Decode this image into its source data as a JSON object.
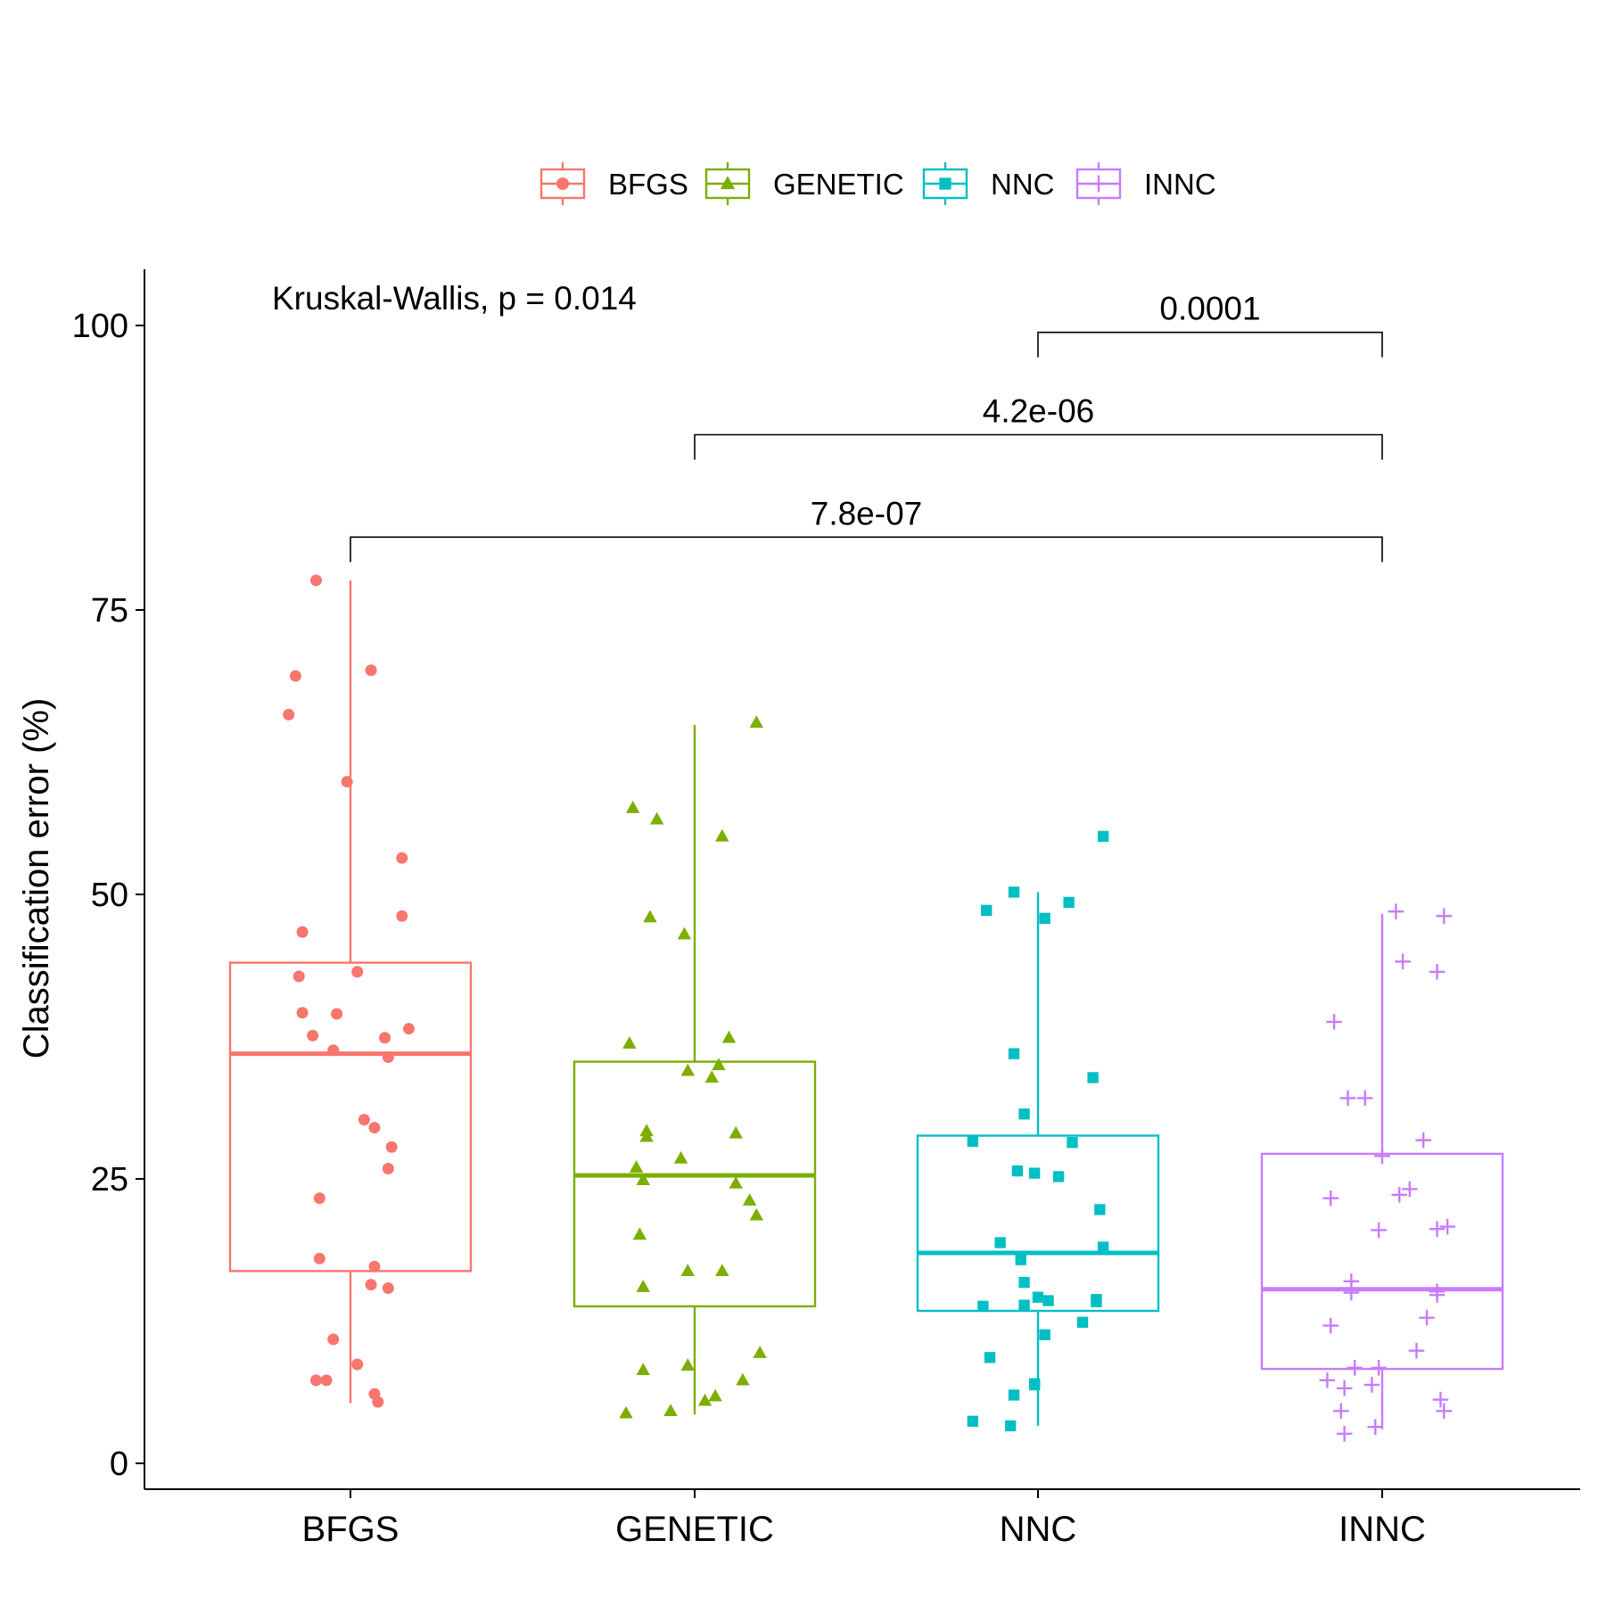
{
  "chart_data": {
    "type": "box",
    "ylabel": "Classification error (%)",
    "xlabel": "",
    "ylim": [
      -2.3,
      104.8
    ],
    "yticks": [
      0,
      25,
      50,
      75,
      100
    ],
    "categories": [
      "BFGS",
      "GENETIC",
      "NNC",
      "INNC"
    ],
    "legend": {
      "position": "top",
      "entries": [
        {
          "label": "BFGS",
          "color": "#F8766D",
          "shape": "circle"
        },
        {
          "label": "GENETIC",
          "color": "#7CAE00",
          "shape": "triangle"
        },
        {
          "label": "NNC",
          "color": "#00BFC4",
          "shape": "square"
        },
        {
          "label": "INNC",
          "color": "#C77CFF",
          "shape": "plus"
        }
      ]
    },
    "series": [
      {
        "name": "BFGS",
        "color": "#F8766D",
        "shape": "circle",
        "box": {
          "whisker_low": 5.3,
          "q1": 16.9,
          "median": 36.0,
          "q3": 44.0,
          "whisker_high": 77.6
        },
        "points": [
          [
            -0.1,
            77.6
          ],
          [
            -0.16,
            69.2
          ],
          [
            0.06,
            69.7
          ],
          [
            -0.18,
            65.8
          ],
          [
            -0.01,
            59.9
          ],
          [
            0.15,
            53.2
          ],
          [
            0.15,
            48.1
          ],
          [
            -0.14,
            46.7
          ],
          [
            0.02,
            43.2
          ],
          [
            -0.15,
            42.8
          ],
          [
            -0.14,
            39.6
          ],
          [
            -0.04,
            39.5
          ],
          [
            0.17,
            38.2
          ],
          [
            -0.11,
            37.6
          ],
          [
            0.1,
            37.4
          ],
          [
            -0.05,
            36.3
          ],
          [
            0.11,
            35.7
          ],
          [
            0.04,
            30.2
          ],
          [
            0.07,
            29.5
          ],
          [
            0.12,
            27.8
          ],
          [
            0.11,
            25.9
          ],
          [
            -0.09,
            23.3
          ],
          [
            -0.09,
            18.0
          ],
          [
            0.07,
            17.3
          ],
          [
            0.06,
            15.7
          ],
          [
            0.11,
            15.4
          ],
          [
            -0.05,
            10.9
          ],
          [
            0.02,
            8.7
          ],
          [
            -0.1,
            7.3
          ],
          [
            -0.07,
            7.3
          ],
          [
            0.07,
            6.1
          ],
          [
            0.08,
            5.4
          ]
        ]
      },
      {
        "name": "GENETIC",
        "color": "#7CAE00",
        "shape": "triangle",
        "box": {
          "whisker_low": 4.3,
          "q1": 13.8,
          "median": 25.3,
          "q3": 35.3,
          "whisker_high": 64.9
        },
        "points": [
          [
            0.18,
            65.1
          ],
          [
            -0.18,
            57.6
          ],
          [
            -0.11,
            56.6
          ],
          [
            0.08,
            55.1
          ],
          [
            -0.13,
            48.0
          ],
          [
            -0.03,
            46.5
          ],
          [
            -0.19,
            36.9
          ],
          [
            0.1,
            37.4
          ],
          [
            0.07,
            35.0
          ],
          [
            -0.02,
            34.5
          ],
          [
            0.05,
            33.9
          ],
          [
            -0.14,
            29.2
          ],
          [
            -0.14,
            28.7
          ],
          [
            0.12,
            29.0
          ],
          [
            -0.04,
            26.8
          ],
          [
            -0.17,
            26.0
          ],
          [
            -0.15,
            24.9
          ],
          [
            0.12,
            24.6
          ],
          [
            0.16,
            23.1
          ],
          [
            0.18,
            21.8
          ],
          [
            -0.16,
            20.1
          ],
          [
            -0.15,
            15.5
          ],
          [
            -0.02,
            16.9
          ],
          [
            0.08,
            16.9
          ],
          [
            0.19,
            9.7
          ],
          [
            -0.15,
            8.2
          ],
          [
            -0.02,
            8.6
          ],
          [
            0.06,
            5.9
          ],
          [
            0.03,
            5.5
          ],
          [
            0.14,
            7.3
          ],
          [
            -0.2,
            4.4
          ],
          [
            -0.07,
            4.6
          ]
        ]
      },
      {
        "name": "NNC",
        "color": "#00BFC4",
        "shape": "square",
        "box": {
          "whisker_low": 3.3,
          "q1": 13.4,
          "median": 18.5,
          "q3": 28.8,
          "whisker_high": 50.2
        },
        "points": [
          [
            0.19,
            55.1
          ],
          [
            -0.07,
            50.2
          ],
          [
            -0.15,
            48.6
          ],
          [
            0.09,
            49.3
          ],
          [
            0.02,
            47.9
          ],
          [
            -0.07,
            36.0
          ],
          [
            0.16,
            33.9
          ],
          [
            -0.04,
            30.7
          ],
          [
            -0.19,
            28.3
          ],
          [
            0.1,
            28.2
          ],
          [
            -0.06,
            25.7
          ],
          [
            -0.01,
            25.5
          ],
          [
            0.06,
            25.2
          ],
          [
            0.18,
            22.3
          ],
          [
            -0.11,
            19.4
          ],
          [
            0.19,
            19.0
          ],
          [
            -0.05,
            17.9
          ],
          [
            -0.04,
            15.9
          ],
          [
            0.0,
            14.6
          ],
          [
            0.03,
            14.3
          ],
          [
            0.17,
            14.4
          ],
          [
            0.17,
            14.2
          ],
          [
            -0.16,
            13.8
          ],
          [
            -0.04,
            13.9
          ],
          [
            0.13,
            12.4
          ],
          [
            0.02,
            11.3
          ],
          [
            -0.14,
            9.3
          ],
          [
            -0.07,
            6.0
          ],
          [
            -0.01,
            7.0
          ],
          [
            -0.01,
            6.9
          ],
          [
            -0.19,
            3.7
          ],
          [
            -0.08,
            3.3
          ]
        ]
      },
      {
        "name": "INNC",
        "color": "#C77CFF",
        "shape": "plus",
        "box": {
          "whisker_low": 3.0,
          "q1": 8.3,
          "median": 15.3,
          "q3": 27.2,
          "whisker_high": 48.3
        },
        "points": [
          [
            0.04,
            48.5
          ],
          [
            0.18,
            48.1
          ],
          [
            0.06,
            44.1
          ],
          [
            0.16,
            43.2
          ],
          [
            -0.14,
            38.8
          ],
          [
            -0.1,
            32.1
          ],
          [
            -0.05,
            32.1
          ],
          [
            0.12,
            28.4
          ],
          [
            0.0,
            27.0
          ],
          [
            0.05,
            23.6
          ],
          [
            -0.15,
            23.3
          ],
          [
            0.08,
            24.1
          ],
          [
            0.16,
            20.6
          ],
          [
            0.19,
            20.8
          ],
          [
            -0.01,
            20.5
          ],
          [
            0.16,
            15.1
          ],
          [
            0.16,
            14.8
          ],
          [
            -0.09,
            16.0
          ],
          [
            -0.09,
            15.0
          ],
          [
            0.13,
            12.8
          ],
          [
            -0.15,
            12.1
          ],
          [
            0.1,
            9.9
          ],
          [
            -0.01,
            8.4
          ],
          [
            -0.08,
            8.4
          ],
          [
            -0.16,
            7.3
          ],
          [
            -0.11,
            6.6
          ],
          [
            -0.03,
            6.9
          ],
          [
            0.17,
            5.6
          ],
          [
            0.18,
            4.6
          ],
          [
            -0.12,
            4.6
          ],
          [
            -0.02,
            3.2
          ],
          [
            -0.11,
            2.6
          ]
        ]
      }
    ],
    "annotations": {
      "test_text": "Kruskal-Wallis, p = 0.014",
      "brackets": [
        {
          "from": "NNC",
          "to": "INNC",
          "y": 99.4,
          "label": "0.0001"
        },
        {
          "from": "GENETIC",
          "to": "INNC",
          "y": 90.4,
          "label": "4.2e-06"
        },
        {
          "from": "BFGS",
          "to": "INNC",
          "y": 81.4,
          "label": "7.8e-07"
        }
      ]
    }
  }
}
